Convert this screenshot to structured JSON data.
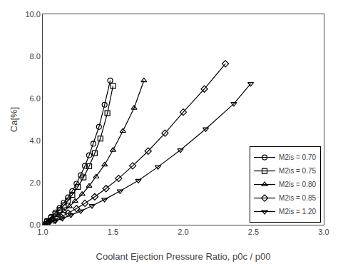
{
  "chart_data": {
    "type": "line",
    "x_label": "Coolant Ejection Pressure Ratio, p0c / p00",
    "y_label": "Ca[%]",
    "xlim": [
      1.0,
      3.0
    ],
    "ylim": [
      0.0,
      10.0
    ],
    "xticks": [
      {
        "value": 1.0,
        "label": "1.0"
      },
      1.5,
      {
        "value": 2.0,
        "label": "2.0"
      },
      2.5,
      {
        "value": 3.0,
        "label": "3.0"
      }
    ],
    "yticks": [
      {
        "value": 0.0,
        "label": "0.0"
      },
      {
        "value": 2.0,
        "label": "2.0"
      },
      {
        "value": 4.0,
        "label": "4.0"
      },
      {
        "value": 6.0,
        "label": "6.0"
      },
      {
        "value": 8.0,
        "label": "8.0"
      },
      {
        "value": 10.0,
        "label": "10.0"
      }
    ],
    "grid": false,
    "legend": "lower right",
    "series": [
      {
        "name": "M2is = 0.70",
        "color": "#000000",
        "marker": "circle",
        "line_style": "solid",
        "x": [
          1.0,
          1.03,
          1.06,
          1.09,
          1.12,
          1.15,
          1.18,
          1.21,
          1.24,
          1.27,
          1.3,
          1.33,
          1.36,
          1.4,
          1.44,
          1.48
        ],
        "values": [
          0.0,
          0.18,
          0.38,
          0.58,
          0.8,
          1.05,
          1.3,
          1.6,
          1.95,
          2.35,
          2.8,
          3.3,
          3.85,
          4.65,
          5.7,
          6.85
        ]
      },
      {
        "name": "M2is = 0.75",
        "color": "#000000",
        "marker": "square",
        "line_style": "solid",
        "x": [
          1.0,
          1.03,
          1.06,
          1.09,
          1.12,
          1.15,
          1.18,
          1.21,
          1.25,
          1.29,
          1.33,
          1.37,
          1.41,
          1.46,
          1.5
        ],
        "values": [
          0.0,
          0.15,
          0.32,
          0.5,
          0.7,
          0.92,
          1.15,
          1.42,
          1.8,
          2.25,
          2.78,
          3.4,
          4.1,
          5.3,
          6.6
        ]
      },
      {
        "name": "M2is = 0.80",
        "color": "#000000",
        "marker": "triangle-up",
        "line_style": "solid",
        "x": [
          1.0,
          1.03,
          1.07,
          1.11,
          1.15,
          1.19,
          1.23,
          1.28,
          1.33,
          1.38,
          1.44,
          1.5,
          1.57,
          1.65,
          1.72
        ],
        "values": [
          0.0,
          0.13,
          0.28,
          0.46,
          0.65,
          0.87,
          1.12,
          1.45,
          1.84,
          2.28,
          2.85,
          3.55,
          4.45,
          5.55,
          6.85
        ]
      },
      {
        "name": "M2is = 0.85",
        "color": "#000000",
        "marker": "diamond",
        "line_style": "solid",
        "x": [
          1.0,
          1.04,
          1.08,
          1.13,
          1.18,
          1.24,
          1.3,
          1.37,
          1.45,
          1.54,
          1.64,
          1.75,
          1.87,
          2.0,
          2.15,
          2.3
        ],
        "values": [
          0.0,
          0.1,
          0.22,
          0.37,
          0.55,
          0.77,
          1.02,
          1.33,
          1.72,
          2.2,
          2.8,
          3.5,
          4.35,
          5.35,
          6.45,
          7.65
        ]
      },
      {
        "name": "M2is = 1.20",
        "color": "#000000",
        "marker": "triangle-down",
        "line_style": "solid",
        "x": [
          1.0,
          1.04,
          1.09,
          1.14,
          1.2,
          1.27,
          1.35,
          1.44,
          1.55,
          1.68,
          1.82,
          1.98,
          2.16,
          2.36,
          2.48
        ],
        "values": [
          0.0,
          0.08,
          0.18,
          0.3,
          0.46,
          0.65,
          0.9,
          1.2,
          1.6,
          2.1,
          2.75,
          3.55,
          4.55,
          5.75,
          6.7
        ]
      }
    ]
  }
}
